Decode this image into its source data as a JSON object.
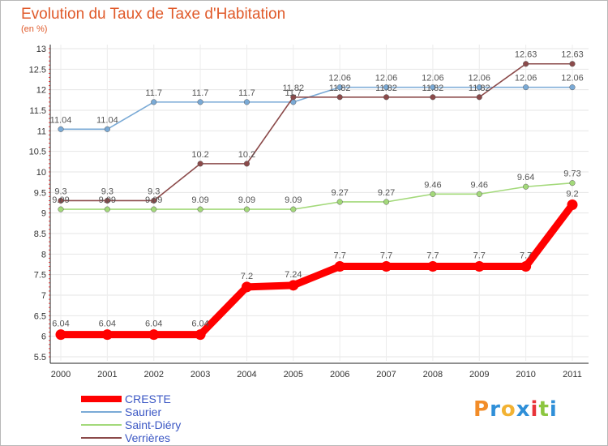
{
  "header": {
    "title": "Evolution du Taux de Taxe d'Habitation",
    "unit": "(en %)"
  },
  "logo": {
    "text": "Proxiti",
    "colors": [
      "#f28c28",
      "#2f8fd8",
      "#f2b233",
      "#2f8fd8",
      "#e8343a",
      "#8cc63f",
      "#2f8fd8"
    ]
  },
  "chart_data": {
    "type": "line",
    "title": "Evolution du Taux de Taxe d'Habitation",
    "ylabel": "(en %)",
    "xlabel": "",
    "x": [
      "2000",
      "2001",
      "2002",
      "2003",
      "2004",
      "2005",
      "2006",
      "2007",
      "2008",
      "2009",
      "2010",
      "2011"
    ],
    "ylim": [
      5.5,
      13
    ],
    "yticks": [
      "5.5",
      "6",
      "6.5",
      "7",
      "7.5",
      "8",
      "8.5",
      "9",
      "9.5",
      "10",
      "10.5",
      "11",
      "11.5",
      "12",
      "12.5",
      "13"
    ],
    "grid": true,
    "legend": "bottom-left",
    "series": [
      {
        "name": "CRESTE",
        "color": "#ff0000",
        "values": [
          6.04,
          6.04,
          6.04,
          6.04,
          7.2,
          7.24,
          7.7,
          7.7,
          7.7,
          7.7,
          7.7,
          9.2
        ],
        "labels": [
          "6.04",
          "6.04",
          "6.04",
          "6.04",
          "7.2",
          "7.24",
          "7.7",
          "7.7",
          "7.7",
          "7.7",
          "7.7",
          "9.2"
        ]
      },
      {
        "name": "Saurier",
        "color": "#7aaad6",
        "values": [
          11.04,
          11.04,
          11.7,
          11.7,
          11.7,
          11.7,
          12.06,
          12.06,
          12.06,
          12.06,
          12.06,
          12.06
        ],
        "labels": [
          "11.04",
          "11.04",
          "11.7",
          "11.7",
          "11.7",
          "11.7",
          "12.06",
          "12.06",
          "12.06",
          "12.06",
          "12.06",
          "12.06"
        ]
      },
      {
        "name": "Saint-Diéry",
        "color": "#a3d97a",
        "values": [
          9.09,
          9.09,
          9.09,
          9.09,
          9.09,
          9.09,
          9.27,
          9.27,
          9.46,
          9.46,
          9.64,
          9.73
        ],
        "labels": [
          "9.09",
          "9.09",
          "9.09",
          "9.09",
          "9.09",
          "9.09",
          "9.27",
          "9.27",
          "9.46",
          "9.46",
          "9.64",
          "9.73"
        ]
      },
      {
        "name": "Verrières",
        "color": "#8b4a4a",
        "values": [
          9.3,
          9.3,
          9.3,
          10.2,
          10.2,
          11.82,
          11.82,
          11.82,
          11.82,
          11.82,
          12.63,
          12.63
        ],
        "labels": [
          "9.3",
          "9.3",
          "9.3",
          "10.2",
          "10.2",
          "11.82",
          "11.82",
          "11.82",
          "11.82",
          "11.82",
          "12.63",
          "12.63"
        ]
      }
    ]
  }
}
